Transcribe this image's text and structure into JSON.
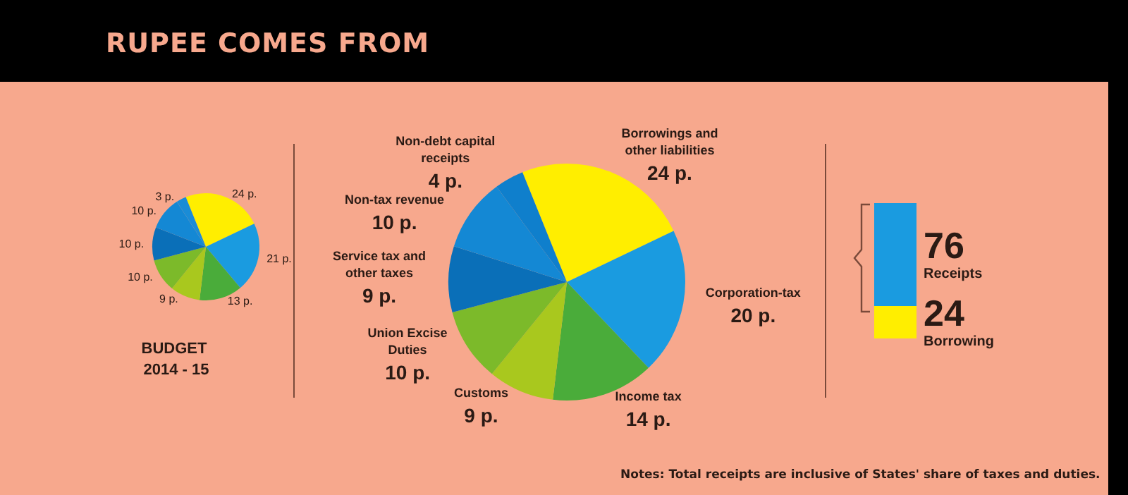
{
  "chart_data": [
    {
      "type": "pie",
      "title": "BUDGET 2014 - 15",
      "categories": [
        null,
        null,
        null,
        null,
        null,
        null,
        null,
        null
      ],
      "values": [
        24,
        21,
        13,
        9,
        10,
        10,
        10,
        3
      ],
      "colors": [
        "#ffee00",
        "#1a9be0",
        "#4aac3a",
        "#a9c81e",
        "#7cba2a",
        "#0a6fb8",
        "#1488d4",
        "#1a8cd6"
      ],
      "value_labels": [
        "24 p.",
        "21 p.",
        "13 p.",
        "9 p.",
        "10 p.",
        "10 p.",
        "10 p.",
        "3 p."
      ]
    },
    {
      "type": "pie",
      "title": "RUPEE COMES FROM",
      "categories": [
        "Borrowings and other liabilities",
        "Corporation-tax",
        "Income tax",
        "Customs",
        "Union Excise Duties",
        "Service tax and other taxes",
        "Non-tax revenue",
        "Non-debt capital receipts"
      ],
      "values": [
        24,
        20,
        14,
        9,
        10,
        9,
        10,
        4
      ],
      "colors": [
        "#ffee00",
        "#1a9be0",
        "#4aac3a",
        "#a9c81e",
        "#7cba2a",
        "#0a6fb8",
        "#1488d4",
        "#0f7fcc"
      ],
      "value_labels": [
        "24 p.",
        "20 p.",
        "14 p.",
        "9 p.",
        "10 p.",
        "9 p.",
        "10 p.",
        "4 p."
      ],
      "annotations": [
        "Notes: Total receipts are inclusive of States' share of taxes and duties."
      ]
    },
    {
      "type": "bar",
      "stacked": true,
      "categories": [
        null
      ],
      "series": [
        {
          "name": "Borrowing",
          "color": "#ffee00",
          "values": [
            24
          ]
        },
        {
          "name": "Receipts",
          "color": "#1a9be0",
          "values": [
            76
          ]
        }
      ],
      "data_labels": true
    }
  ]
}
